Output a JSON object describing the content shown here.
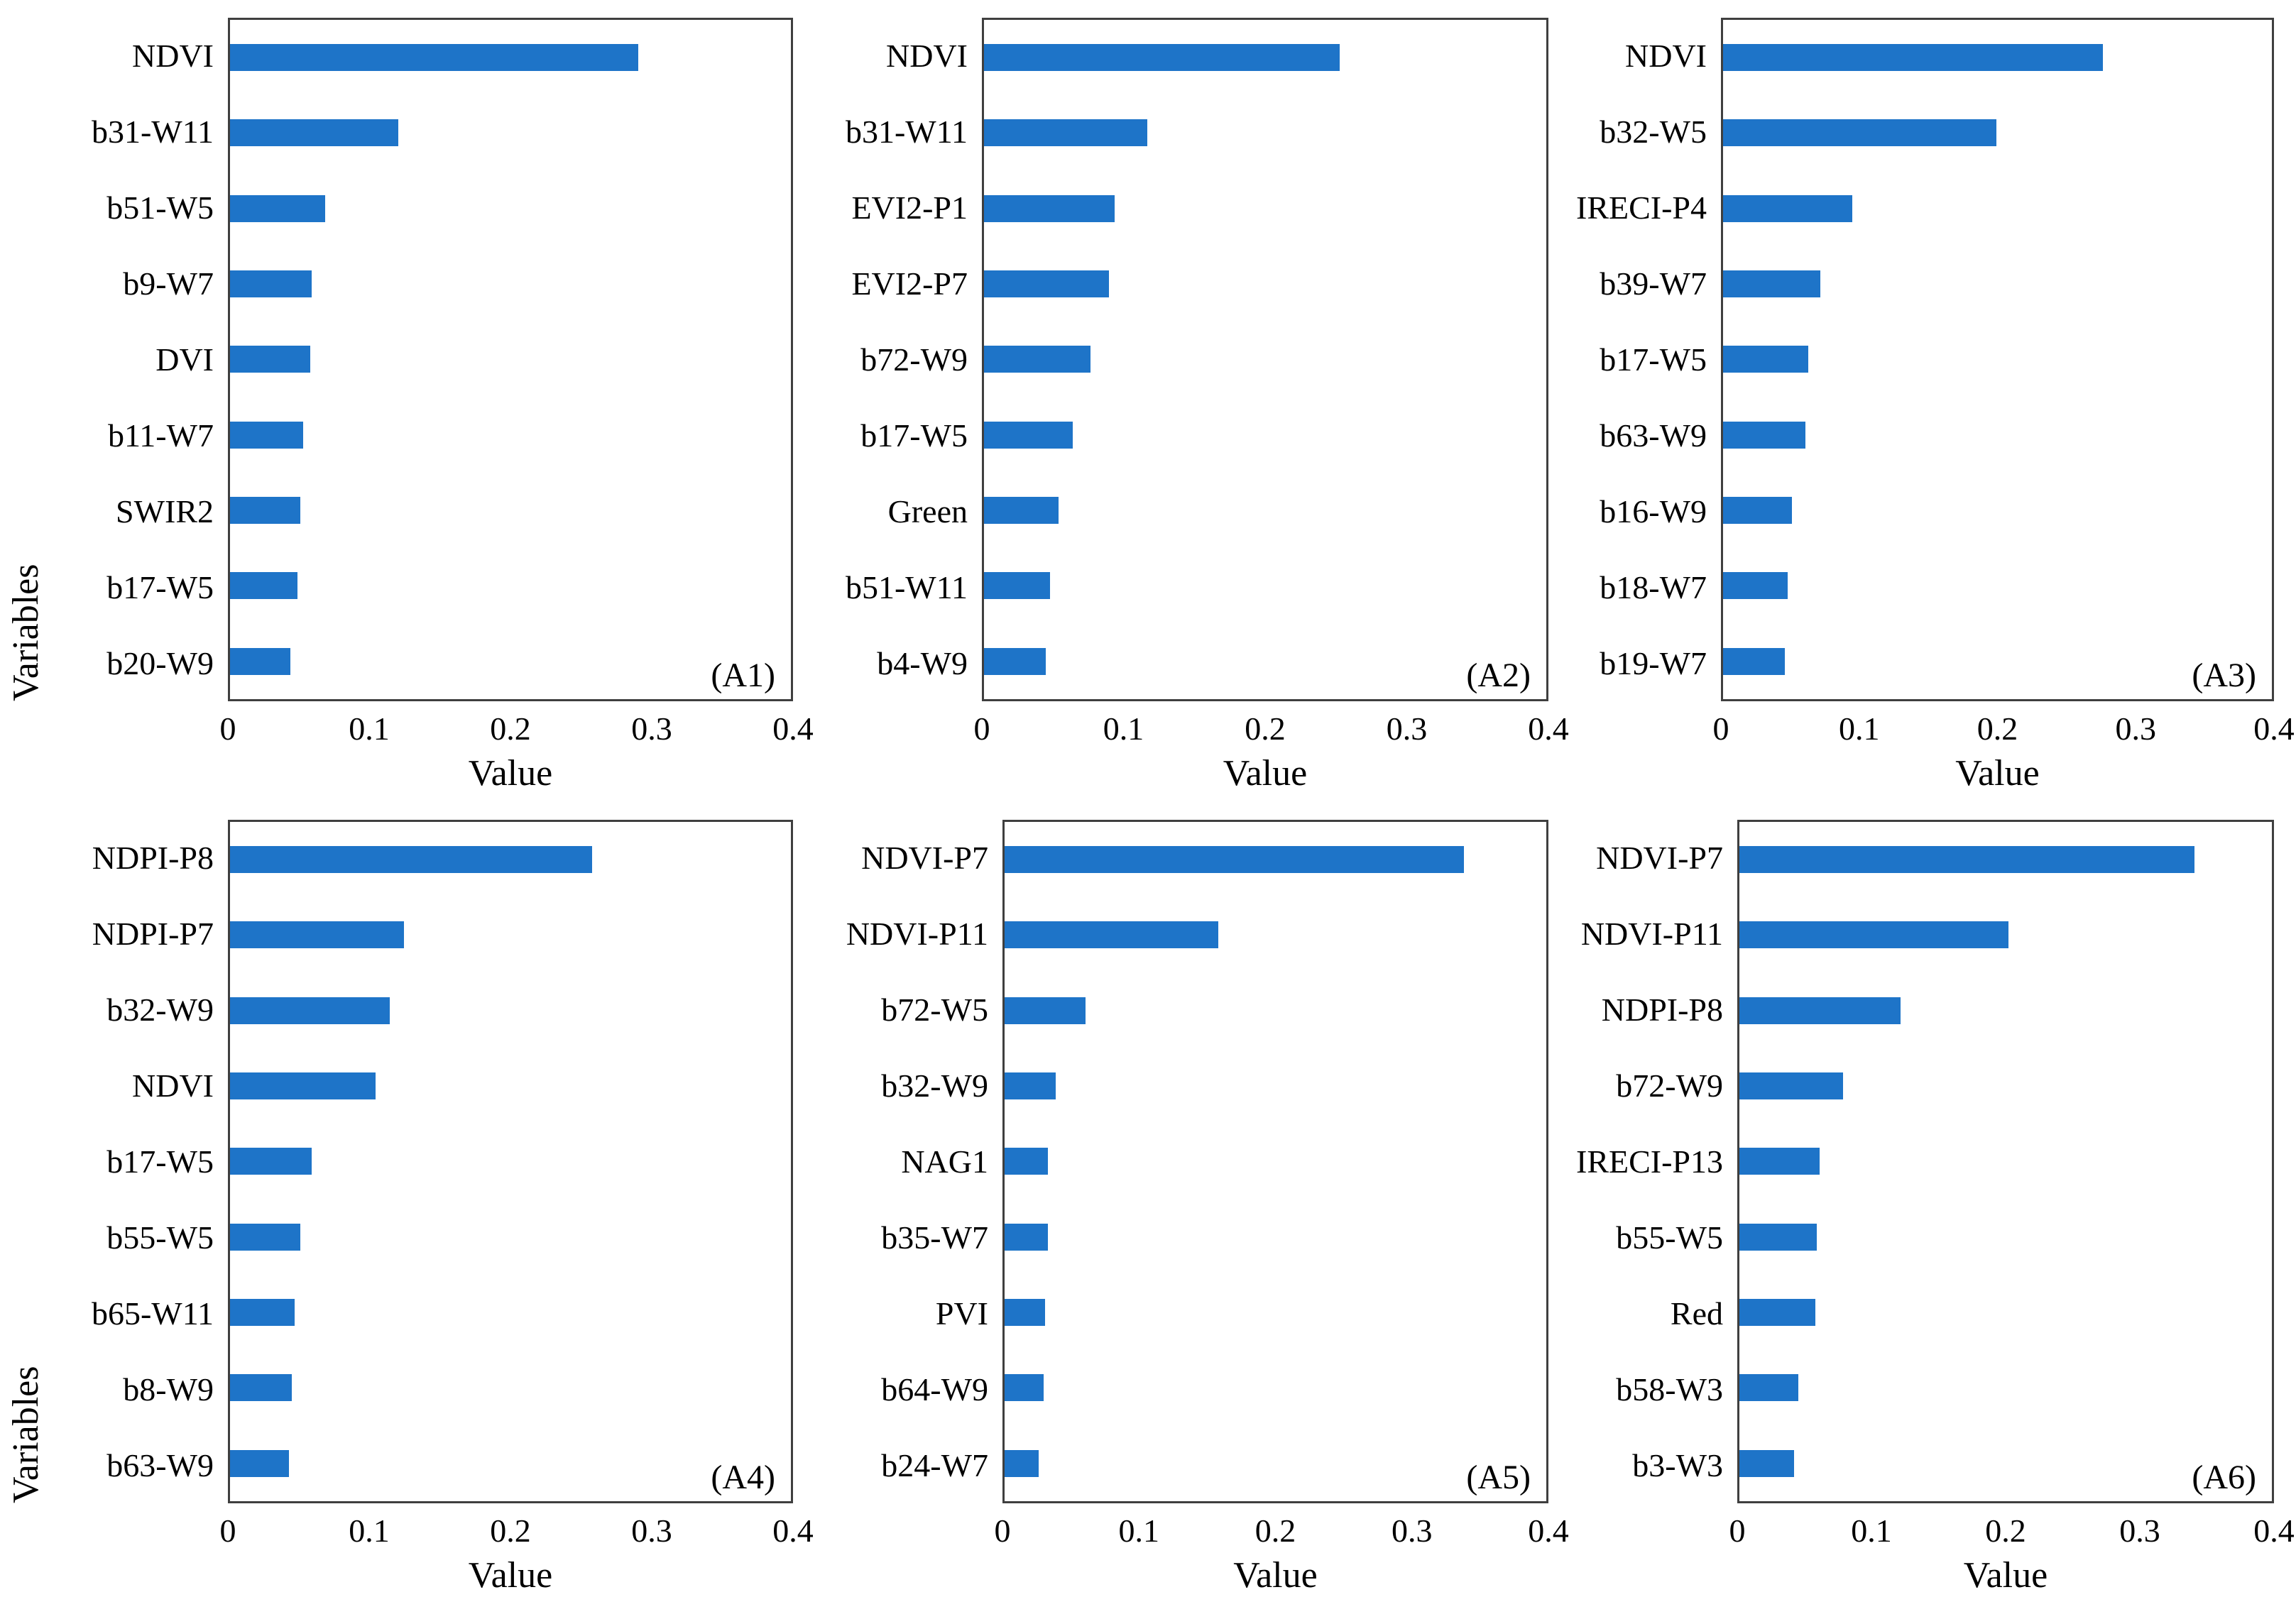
{
  "figure": {
    "background": "#ffffff",
    "bar_color": "#1E74C8",
    "axis_color": "#3f3f3f",
    "text_color": "#000000"
  },
  "chart_data": [
    {
      "type": "bar",
      "orientation": "horizontal",
      "panel_label": "(A1)",
      "xlabel": "Value",
      "ylabel": "Variables",
      "xlim": [
        0,
        0.4
      ],
      "grid": false,
      "x_ticks": [
        "0",
        "0.1",
        "0.2",
        "0.3",
        "0.4"
      ],
      "categories": [
        "NDVI",
        "b31-W11",
        "b51-W5",
        "b9-W7",
        "DVI",
        "b11-W7",
        "SWIR2",
        "b17-W5",
        "b20-W9"
      ],
      "values": [
        0.291,
        0.12,
        0.068,
        0.058,
        0.057,
        0.052,
        0.05,
        0.048,
        0.043
      ]
    },
    {
      "type": "bar",
      "orientation": "horizontal",
      "panel_label": "(A2)",
      "xlabel": "Value",
      "ylabel": "Variables",
      "xlim": [
        0,
        0.4
      ],
      "grid": false,
      "x_ticks": [
        "0",
        "0.1",
        "0.2",
        "0.3",
        "0.4"
      ],
      "categories": [
        "NDVI",
        "b31-W11",
        "EVI2-P1",
        "EVI2-P7",
        "b72-W9",
        "b17-W5",
        "Green",
        "b51-W11",
        "b4-W9"
      ],
      "values": [
        0.253,
        0.116,
        0.093,
        0.089,
        0.076,
        0.063,
        0.053,
        0.047,
        0.044
      ]
    },
    {
      "type": "bar",
      "orientation": "horizontal",
      "panel_label": "(A3)",
      "xlabel": "Value",
      "ylabel": "Variables",
      "xlim": [
        0,
        0.4
      ],
      "grid": false,
      "x_ticks": [
        "0",
        "0.1",
        "0.2",
        "0.3",
        "0.4"
      ],
      "categories": [
        "NDVI",
        "b32-W5",
        "IRECI-P4",
        "b39-W7",
        "b17-W5",
        "b63-W9",
        "b16-W9",
        "b18-W7",
        "b19-W7"
      ],
      "values": [
        0.277,
        0.199,
        0.094,
        0.071,
        0.062,
        0.06,
        0.05,
        0.047,
        0.045
      ]
    },
    {
      "type": "bar",
      "orientation": "horizontal",
      "panel_label": "(A4)",
      "xlabel": "Value",
      "ylabel": "Variables",
      "xlim": [
        0,
        0.4
      ],
      "grid": false,
      "x_ticks": [
        "0",
        "0.1",
        "0.2",
        "0.3",
        "0.4"
      ],
      "categories": [
        "NDPI-P8",
        "NDPI-P7",
        "b32-W9",
        "NDVI",
        "b17-W5",
        "b55-W5",
        "b65-W11",
        "b8-W9",
        "b63-W9"
      ],
      "values": [
        0.258,
        0.124,
        0.114,
        0.104,
        0.058,
        0.05,
        0.046,
        0.044,
        0.042
      ]
    },
    {
      "type": "bar",
      "orientation": "horizontal",
      "panel_label": "(A5)",
      "xlabel": "Value",
      "ylabel": "Variables",
      "xlim": [
        0,
        0.4
      ],
      "grid": false,
      "x_ticks": [
        "0",
        "0.1",
        "0.2",
        "0.3",
        "0.4"
      ],
      "categories": [
        "NDVI-P7",
        "NDVI-P11",
        "b72-W5",
        "b32-W9",
        "NAG1",
        "b35-W7",
        "PVI",
        "b64-W9",
        "b24-W7"
      ],
      "values": [
        0.339,
        0.158,
        0.06,
        0.038,
        0.032,
        0.032,
        0.03,
        0.029,
        0.025
      ]
    },
    {
      "type": "bar",
      "orientation": "horizontal",
      "panel_label": "(A6)",
      "xlabel": "Value",
      "ylabel": "Variables",
      "xlim": [
        0,
        0.4
      ],
      "grid": false,
      "x_ticks": [
        "0",
        "0.1",
        "0.2",
        "0.3",
        "0.4"
      ],
      "categories": [
        "NDVI-P7",
        "NDVI-P11",
        "NDPI-P8",
        "b72-W9",
        "IRECI-P13",
        "b55-W5",
        "Red",
        "b58-W3",
        "b3-W3"
      ],
      "values": [
        0.342,
        0.202,
        0.121,
        0.078,
        0.06,
        0.058,
        0.057,
        0.044,
        0.041
      ]
    }
  ]
}
